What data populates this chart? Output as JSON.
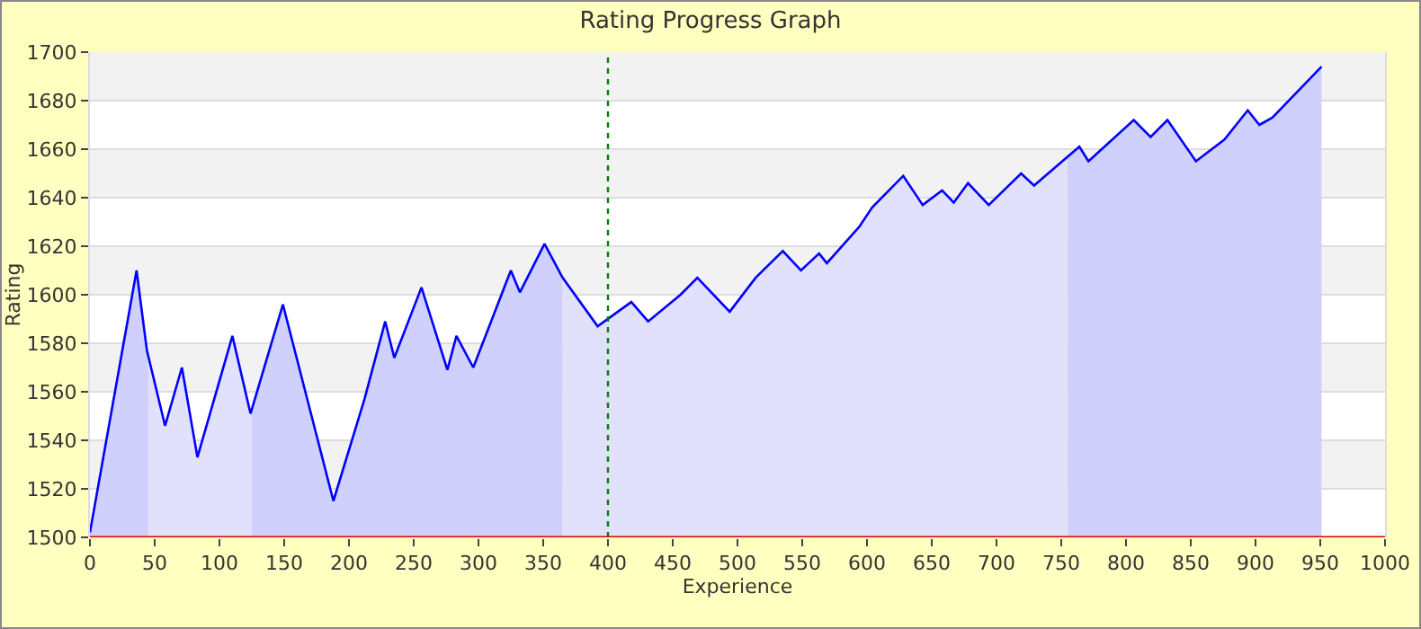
{
  "chart_data": {
    "type": "area",
    "title": "Rating Progress Graph",
    "xlabel": "Experience",
    "ylabel": "Rating",
    "xlim": [
      0,
      1000
    ],
    "xticks": [
      0,
      50,
      100,
      150,
      200,
      250,
      300,
      350,
      400,
      450,
      500,
      550,
      600,
      650,
      700,
      750,
      800,
      850,
      900,
      950,
      1000
    ],
    "ylim": [
      1500,
      1700
    ],
    "yticks": [
      1500,
      1520,
      1540,
      1560,
      1580,
      1600,
      1620,
      1640,
      1660,
      1680,
      1700
    ],
    "grid": "y",
    "marker": "none",
    "line_style": "solid",
    "series": [
      {
        "color": "#cfd0fc",
        "x": [
          0,
          36,
          44,
          45
        ],
        "values": [
          1502,
          1610,
          1577,
          1575
        ]
      },
      {
        "color": "#e1e1fc",
        "x": [
          45,
          58,
          71,
          83,
          110,
          124,
          125
        ],
        "values": [
          1575,
          1546,
          1570,
          1533,
          1583,
          1551,
          1553
        ]
      },
      {
        "color": "#cfd0fc",
        "x": [
          125,
          149,
          188,
          212,
          228,
          235,
          256,
          276,
          283,
          296,
          325,
          332,
          351,
          365
        ],
        "values": [
          1553,
          1596,
          1515,
          1557,
          1589,
          1574,
          1603,
          1569,
          1583,
          1570,
          1610,
          1601,
          1621,
          1607
        ]
      },
      {
        "color": "#e1e1fc",
        "x": [
          365,
          392,
          418,
          431,
          456,
          469,
          494,
          514,
          535,
          549,
          563,
          569,
          594,
          604,
          628,
          643,
          658,
          667,
          678,
          694,
          719,
          729,
          753,
          755
        ],
        "values": [
          1607,
          1587,
          1597,
          1589,
          1600,
          1607,
          1593,
          1607,
          1618,
          1610,
          1617,
          1613,
          1628,
          1636,
          1649,
          1637,
          1643,
          1638,
          1646,
          1637,
          1650,
          1645,
          1656,
          1657
        ]
      },
      {
        "color": "#cfd0fc",
        "x": [
          755,
          764,
          771,
          806,
          819,
          832,
          854,
          876,
          894,
          903,
          913,
          951
        ],
        "values": [
          1657,
          1661,
          1655,
          1672,
          1665,
          1672,
          1655,
          1664,
          1676,
          1670,
          1673,
          1694
        ]
      },
      {
        "type": "line",
        "color": "#0000ff",
        "x": [
          0,
          36,
          44,
          58,
          71,
          83,
          110,
          124,
          149,
          188,
          212,
          228,
          235,
          256,
          276,
          283,
          296,
          325,
          332,
          351,
          365,
          392,
          418,
          431,
          456,
          469,
          494,
          514,
          535,
          549,
          563,
          569,
          594,
          604,
          628,
          643,
          658,
          667,
          678,
          694,
          719,
          729,
          753,
          764,
          771,
          806,
          819,
          832,
          854,
          876,
          894,
          903,
          913,
          951
        ],
        "values": [
          1502,
          1610,
          1577,
          1546,
          1570,
          1533,
          1583,
          1551,
          1596,
          1515,
          1557,
          1589,
          1574,
          1603,
          1569,
          1583,
          1570,
          1610,
          1601,
          1621,
          1607,
          1587,
          1597,
          1589,
          1600,
          1607,
          1593,
          1607,
          1618,
          1610,
          1617,
          1613,
          1628,
          1636,
          1649,
          1637,
          1643,
          1638,
          1646,
          1637,
          1650,
          1645,
          1656,
          1661,
          1655,
          1672,
          1665,
          1672,
          1655,
          1664,
          1676,
          1670,
          1673,
          1694
        ]
      }
    ],
    "ref_lines": [
      {
        "axis": "x",
        "value": 400,
        "color": "#008000",
        "line_style": "dotted"
      }
    ]
  }
}
